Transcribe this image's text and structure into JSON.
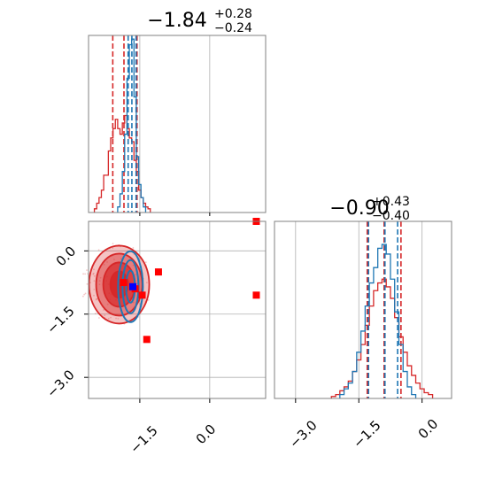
{
  "colors": {
    "red": "#d62728",
    "blue": "#1f77b4",
    "marker_red": "#ff0000",
    "marker_blue": "#0000ff",
    "grid": "#b0b0b0",
    "axes": "#808080"
  },
  "chart_data": [
    {
      "type": "histogram",
      "panel": "marginal-param-1",
      "title": {
        "value": "−1.84",
        "plus": "+0.28",
        "minus": "−0.24"
      },
      "xlim": [
        -2.6,
        1.2
      ],
      "grid": true,
      "series": [
        {
          "name": "",
          "color": "#d62728",
          "bins": [
            [
              -2.45,
              0.02
            ],
            [
              -2.4,
              0.05
            ],
            [
              -2.35,
              0.08
            ],
            [
              -2.3,
              0.12
            ],
            [
              -2.25,
              0.2
            ],
            [
              -2.2,
              0.2
            ],
            [
              -2.15,
              0.33
            ],
            [
              -2.1,
              0.4
            ],
            [
              -2.05,
              0.45
            ],
            [
              -2.0,
              0.5
            ],
            [
              -1.95,
              0.45
            ],
            [
              -1.9,
              0.42
            ],
            [
              -1.85,
              0.48
            ],
            [
              -1.8,
              0.52
            ],
            [
              -1.75,
              0.45
            ],
            [
              -1.7,
              0.4
            ],
            [
              -1.65,
              0.38
            ],
            [
              -1.6,
              0.28
            ],
            [
              -1.55,
              0.22
            ],
            [
              -1.5,
              0.12
            ],
            [
              -1.45,
              0.08
            ],
            [
              -1.4,
              0.05
            ],
            [
              -1.35,
              0.03
            ],
            [
              -1.3,
              0.02
            ]
          ],
          "quantiles": [
            -2.08,
            -1.84,
            -1.56
          ]
        },
        {
          "name": "",
          "color": "#1f77b4",
          "bins": [
            [
              -1.95,
              0.03
            ],
            [
              -1.9,
              0.1
            ],
            [
              -1.85,
              0.22
            ],
            [
              -1.8,
              0.42
            ],
            [
              -1.75,
              0.72
            ],
            [
              -1.7,
              0.9
            ],
            [
              -1.65,
              0.93
            ],
            [
              -1.6,
              0.62
            ],
            [
              -1.55,
              0.3
            ],
            [
              -1.5,
              0.15
            ],
            [
              -1.45,
              0.08
            ],
            [
              -1.4,
              0.03
            ]
          ],
          "quantiles": [
            -1.75,
            -1.67,
            -1.58
          ]
        }
      ]
    },
    {
      "type": "contour-scatter",
      "panel": "joint",
      "xlim": [
        -2.6,
        1.2
      ],
      "ylim": [
        -3.5,
        0.7
      ],
      "xticks": [
        "−1.5",
        "0.0"
      ],
      "yticks": [
        "0.0",
        "−1.5",
        "−3.0"
      ],
      "grid": true,
      "red_contour_center": [
        -2.0,
        -0.8
      ],
      "blue_contour_center": [
        -1.7,
        -0.85
      ],
      "red_markers": [
        [
          -1.1,
          -0.5
        ],
        [
          -1.85,
          -0.75
        ],
        [
          -1.6,
          -0.9
        ],
        [
          -1.45,
          -1.05
        ],
        [
          -1.35,
          -2.1
        ],
        [
          1.0,
          -1.05
        ],
        [
          1.0,
          0.7
        ]
      ],
      "blue_markers": [
        [
          -1.65,
          -0.85
        ]
      ]
    },
    {
      "type": "histogram",
      "panel": "marginal-param-2",
      "title": {
        "value": "−0.90",
        "plus": "+0.43",
        "minus": "−0.40"
      },
      "xlim": [
        -3.5,
        0.7
      ],
      "xticks": [
        "−3.0",
        "−1.5",
        "0.0"
      ],
      "grid": true,
      "series": [
        {
          "name": "",
          "color": "#d62728",
          "bins": [
            [
              -2.1,
              0.01
            ],
            [
              -2.0,
              0.02
            ],
            [
              -1.9,
              0.04
            ],
            [
              -1.8,
              0.06
            ],
            [
              -1.7,
              0.09
            ],
            [
              -1.6,
              0.14
            ],
            [
              -1.5,
              0.2
            ],
            [
              -1.4,
              0.28
            ],
            [
              -1.3,
              0.38
            ],
            [
              -1.2,
              0.48
            ],
            [
              -1.1,
              0.56
            ],
            [
              -1.0,
              0.6
            ],
            [
              -0.9,
              0.62
            ],
            [
              -0.8,
              0.58
            ],
            [
              -0.7,
              0.52
            ],
            [
              -0.6,
              0.42
            ],
            [
              -0.5,
              0.32
            ],
            [
              -0.4,
              0.24
            ],
            [
              -0.3,
              0.17
            ],
            [
              -0.2,
              0.12
            ],
            [
              -0.1,
              0.08
            ],
            [
              0.0,
              0.05
            ],
            [
              0.1,
              0.03
            ],
            [
              0.2,
              0.02
            ]
          ],
          "quantiles": [
            -1.3,
            -0.9,
            -0.5
          ]
        },
        {
          "name": "",
          "color": "#1f77b4",
          "bins": [
            [
              -1.9,
              0.02
            ],
            [
              -1.8,
              0.05
            ],
            [
              -1.7,
              0.08
            ],
            [
              -1.6,
              0.14
            ],
            [
              -1.5,
              0.24
            ],
            [
              -1.4,
              0.35
            ],
            [
              -1.3,
              0.48
            ],
            [
              -1.2,
              0.6
            ],
            [
              -1.1,
              0.68
            ],
            [
              -1.0,
              0.78
            ],
            [
              -0.9,
              0.8
            ],
            [
              -0.8,
              0.75
            ],
            [
              -0.7,
              0.62
            ],
            [
              -0.6,
              0.45
            ],
            [
              -0.5,
              0.28
            ],
            [
              -0.4,
              0.14
            ],
            [
              -0.3,
              0.06
            ],
            [
              -0.2,
              0.02
            ]
          ],
          "quantiles": [
            -1.27,
            -0.88,
            -0.58
          ]
        }
      ]
    }
  ]
}
